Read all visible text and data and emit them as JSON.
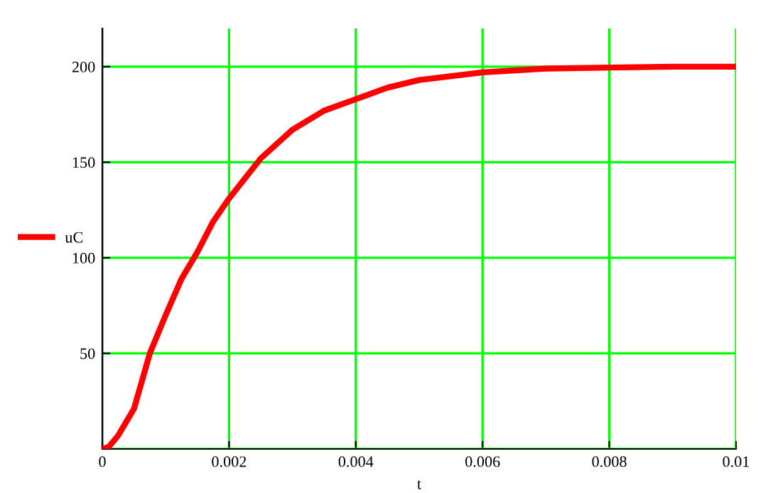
{
  "chart_data": {
    "type": "line",
    "xlabel": "t",
    "x": [
      0,
      0.0001,
      0.00025,
      0.0005,
      0.00075,
      0.001,
      0.00125,
      0.0015,
      0.00175,
      0.002,
      0.0025,
      0.003,
      0.0035,
      0.004,
      0.0045,
      0.005,
      0.006,
      0.007,
      0.008,
      0.009,
      0.01
    ],
    "series": [
      {
        "name": "uC",
        "color": "#ff0000",
        "values": [
          0,
          1,
          7,
          21,
          50,
          70,
          89,
          103,
          119,
          131,
          152,
          167,
          177,
          183,
          189,
          193,
          197,
          199,
          199.5,
          200,
          200
        ]
      }
    ],
    "xlim": [
      0,
      0.01
    ],
    "ylim": [
      0,
      220
    ],
    "xticks": [
      0,
      0.002,
      0.004,
      0.006,
      0.008,
      0.01
    ],
    "yticks": [
      {
        "value": 0,
        "label": null
      },
      50,
      100,
      150,
      200
    ],
    "grid": true,
    "legend": "left",
    "marker": "none",
    "line_style": "solid"
  }
}
